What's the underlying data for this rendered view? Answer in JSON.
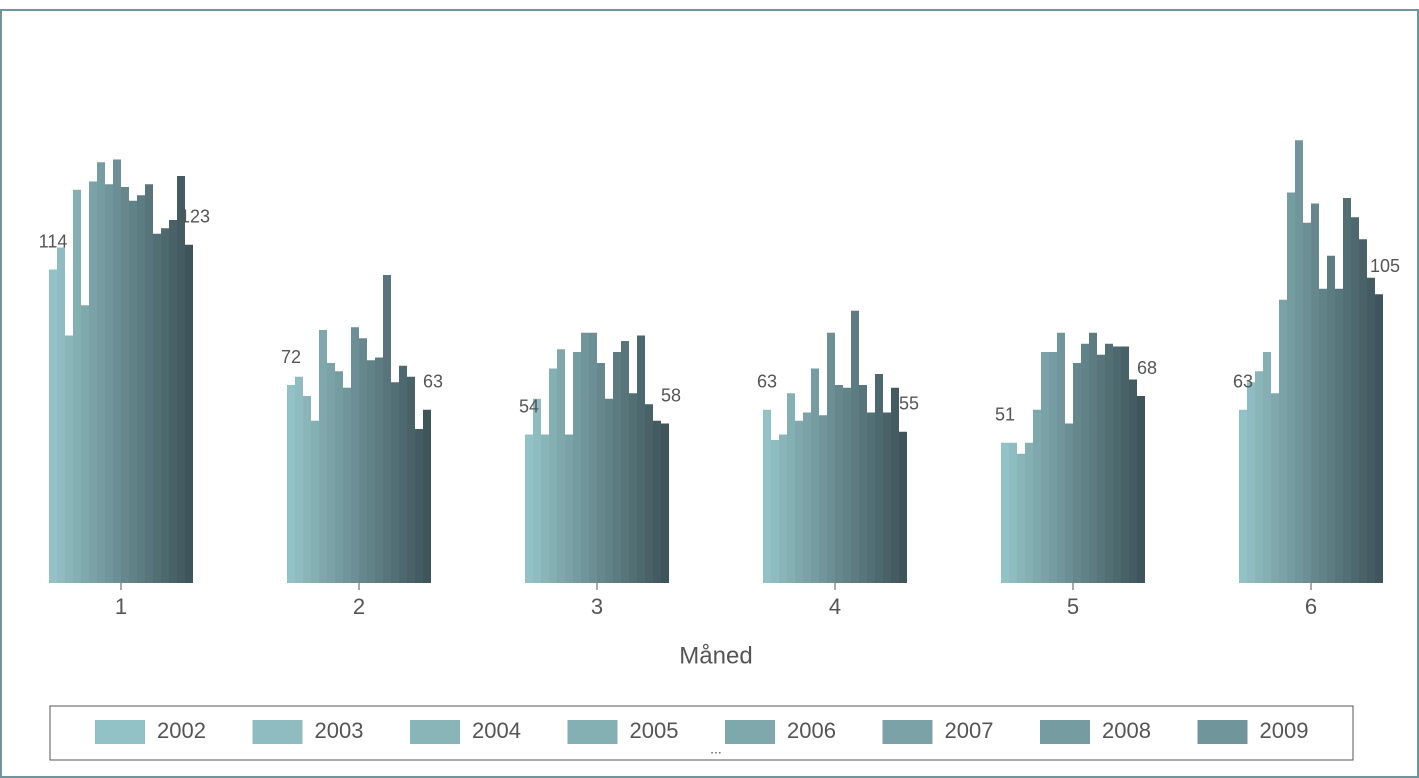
{
  "chart_data": {
    "type": "bar",
    "x_label": "Måned",
    "categories": [
      "1",
      "2",
      "3",
      "4",
      "5",
      "6"
    ],
    "ylim": [
      0,
      200
    ],
    "legend_more": "...",
    "series": [
      {
        "name": "2002",
        "color": "#93c2c6",
        "values": [
          114,
          72,
          54,
          63,
          51,
          63
        ]
      },
      {
        "name": "2003",
        "color": "#8ebcc0",
        "values": [
          122,
          75,
          67,
          52,
          51,
          73
        ]
      },
      {
        "name": "2004",
        "color": "#89b5b9",
        "values": [
          90,
          68,
          54,
          54,
          47,
          77
        ]
      },
      {
        "name": "2005",
        "color": "#84afb3",
        "values": [
          143,
          59,
          78,
          69,
          51,
          84
        ]
      },
      {
        "name": "2006",
        "color": "#7fa8ad",
        "values": [
          101,
          92,
          85,
          59,
          63,
          69
        ]
      },
      {
        "name": "2007",
        "color": "#7aa2a7",
        "values": [
          146,
          80,
          54,
          62,
          84,
          103
        ]
      },
      {
        "name": "2008",
        "color": "#759ca0",
        "values": [
          153,
          77,
          84,
          78,
          84,
          142
        ]
      },
      {
        "name": "2009",
        "color": "#70959a",
        "values": [
          145,
          71,
          91,
          61,
          91,
          161
        ]
      },
      {
        "color": "#6b8f94",
        "values": [
          154,
          93,
          91,
          91,
          58,
          131
        ]
      },
      {
        "color": "#66888d",
        "values": [
          144,
          89,
          80,
          72,
          80,
          138
        ]
      },
      {
        "color": "#618287",
        "values": [
          139,
          81,
          67,
          71,
          87,
          107
        ]
      },
      {
        "color": "#5c7c81",
        "values": [
          141,
          82,
          84,
          99,
          91,
          119
        ]
      },
      {
        "color": "#57757a",
        "values": [
          145,
          112,
          88,
          72,
          83,
          107
        ]
      },
      {
        "color": "#526f74",
        "values": [
          127,
          73,
          69,
          62,
          87,
          140
        ]
      },
      {
        "color": "#4d686e",
        "values": [
          129,
          79,
          90,
          76,
          86,
          133
        ]
      },
      {
        "color": "#486268",
        "values": [
          132,
          75,
          65,
          62,
          86,
          125
        ]
      },
      {
        "color": "#435b61",
        "values": [
          148,
          56,
          59,
          71,
          74,
          111
        ]
      },
      {
        "color": "#3e555b",
        "values": [
          123,
          63,
          58,
          55,
          68,
          105
        ]
      }
    ]
  }
}
